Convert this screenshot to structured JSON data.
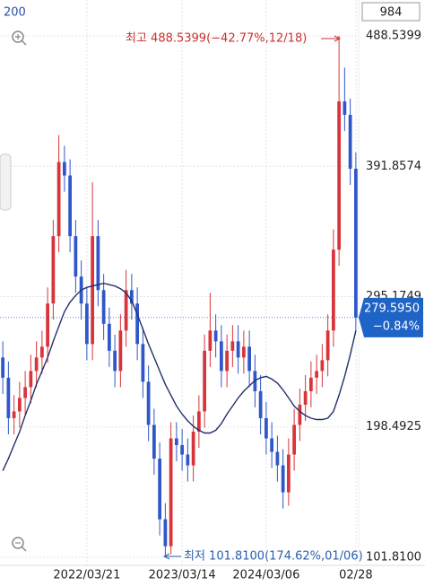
{
  "chart_data": {
    "type": "candlestick",
    "ma_name": "200",
    "counter": "984",
    "categories": [
      null,
      null,
      null,
      null,
      null,
      null,
      null,
      null,
      null,
      null,
      null,
      null,
      null,
      null,
      null,
      "2022/03/21",
      null,
      null,
      null,
      null,
      null,
      null,
      null,
      null,
      null,
      null,
      null,
      null,
      null,
      null,
      null,
      null,
      "2023/03/14",
      null,
      null,
      null,
      null,
      null,
      null,
      null,
      null,
      null,
      null,
      null,
      null,
      null,
      null,
      "2024/03/06",
      null,
      null,
      null,
      null,
      null,
      null,
      null,
      null,
      null,
      null,
      null,
      null,
      null,
      null,
      null,
      "02/28"
    ],
    "open": [
      250,
      235,
      205,
      210,
      220,
      228,
      240,
      250,
      258,
      290,
      340,
      395,
      385,
      340,
      310,
      290,
      260,
      340,
      300,
      275,
      255,
      240,
      270,
      300,
      290,
      260,
      232,
      200,
      175,
      130,
      110,
      190,
      185,
      178,
      170,
      195,
      210,
      255,
      270,
      262,
      240,
      255,
      262,
      250,
      258,
      240,
      225,
      205,
      190,
      180,
      170,
      150,
      178,
      200,
      215,
      225,
      235,
      240,
      248,
      270,
      330,
      440,
      430,
      390
    ],
    "high": [
      262,
      247,
      222,
      232,
      240,
      252,
      262,
      270,
      302,
      352,
      415,
      407,
      397,
      352,
      322,
      302,
      380,
      352,
      312,
      287,
      267,
      282,
      315,
      312,
      302,
      272,
      244,
      212,
      187,
      142,
      202,
      202,
      197,
      190,
      207,
      222,
      267,
      298,
      282,
      274,
      267,
      274,
      274,
      270,
      270,
      252,
      237,
      217,
      202,
      192,
      182,
      190,
      212,
      227,
      237,
      247,
      252,
      260,
      282,
      345,
      488.5399,
      465,
      442,
      402
    ],
    "low": [
      223,
      193,
      193,
      198,
      208,
      216,
      228,
      238,
      246,
      278,
      328,
      373,
      328,
      298,
      278,
      248,
      248,
      288,
      263,
      243,
      228,
      228,
      258,
      278,
      248,
      220,
      188,
      163,
      118,
      101.81,
      104,
      173,
      166,
      158,
      158,
      183,
      198,
      243,
      250,
      228,
      228,
      243,
      238,
      238,
      228,
      213,
      193,
      178,
      168,
      158,
      138,
      140,
      166,
      188,
      203,
      213,
      223,
      228,
      236,
      258,
      318,
      418,
      378,
      270
    ],
    "close": [
      235,
      205,
      210,
      220,
      228,
      240,
      250,
      258,
      290,
      340,
      395,
      385,
      340,
      310,
      290,
      260,
      340,
      300,
      275,
      255,
      240,
      270,
      300,
      290,
      260,
      232,
      200,
      175,
      130,
      110,
      190,
      185,
      178,
      170,
      195,
      210,
      255,
      270,
      262,
      240,
      255,
      262,
      250,
      258,
      240,
      225,
      205,
      190,
      180,
      170,
      150,
      178,
      200,
      215,
      225,
      235,
      240,
      248,
      270,
      330,
      440,
      430,
      390,
      279.595
    ],
    "up_color": "#d8343a",
    "down_color": "#2f57c9",
    "series": [
      {
        "name": "200",
        "color": "#22306a",
        "values": [
          166,
          175,
          185,
          195,
          207,
          218,
          230,
          240,
          250,
          262,
          273,
          284,
          291,
          296,
          300,
          302,
          303,
          304,
          305,
          304,
          303,
          301,
          298,
          292,
          282,
          271,
          260,
          250,
          240,
          230,
          222,
          214,
          208,
          203,
          199,
          196,
          194,
          194,
          196,
          201,
          208,
          214,
          220,
          225,
          229,
          233,
          235,
          236,
          234,
          231,
          226,
          220,
          214,
          210,
          207,
          205,
          204,
          204,
          205,
          210,
          222,
          236,
          252,
          270
        ]
      }
    ],
    "ylim": [
      101.81,
      488.5399
    ],
    "yticks": [
      {
        "value": 101.81,
        "label": "101.8100"
      },
      198.4925,
      295.1749,
      391.8574,
      488.5399
    ],
    "grid": true,
    "high_note": "최고 488.5399(−42.77%,12/18)",
    "low_note": "최저 101.8100(174.62%,01/06)",
    "current_price": {
      "value": 279.595,
      "label": "279.5950"
    },
    "change": "−0.84%"
  }
}
